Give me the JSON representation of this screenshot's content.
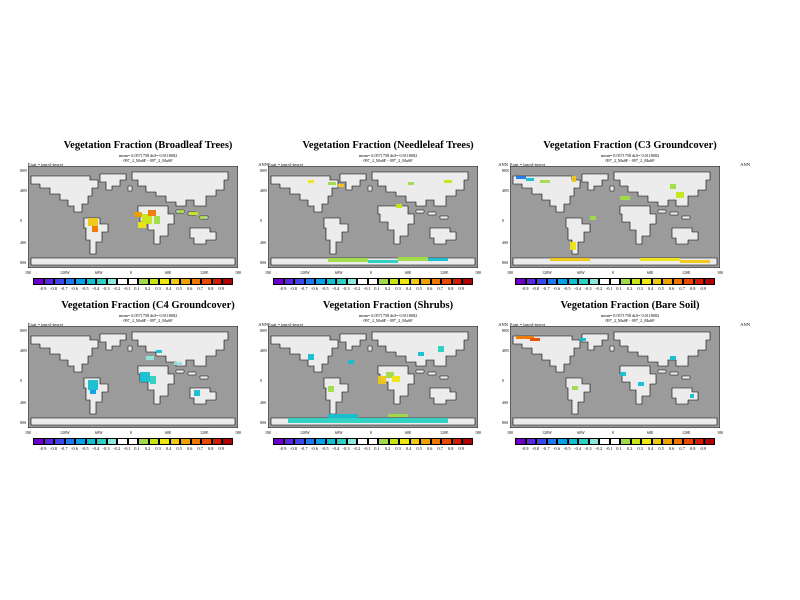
{
  "panels": [
    {
      "title": "Vegetation Fraction (Broadleaf Trees)",
      "subtitle1": "mean= 0.0571758 diff= 0.0118082",
      "subtitle2": "097_2_MaSF - 097_2_MaSF",
      "expt": "Expt = tmcvl-tmcvt",
      "period": "ANN"
    },
    {
      "title": "Vegetation Fraction (Needleleaf Trees)",
      "subtitle1": "mean= 0.0571758 diff= 0.0118082",
      "subtitle2": "097_2_MaSF - 097_2_MaSF",
      "expt": "Expt = tmcvl-tmcvt",
      "period": "ANN"
    },
    {
      "title": "Vegetation Fraction (C3 Groundcover)",
      "subtitle1": "mean= 0.0571758 diff= 0.0118082",
      "subtitle2": "097_2_MaSF - 097_2_MaSF",
      "expt": "Expt = tmcvl-tmcvt",
      "period": "ANN"
    },
    {
      "title": "Vegetation Fraction (C4 Groundcover)",
      "subtitle1": "mean= 0.0571758 diff= 0.0118082",
      "subtitle2": "097_2_MaSF - 097_2_MaSF",
      "expt": "Expt = tmcvl-tmcvt",
      "period": "ANN"
    },
    {
      "title": "Vegetation Fraction (Shrubs)",
      "subtitle1": "mean= 0.0571758 diff= 0.0118082",
      "subtitle2": "097_2_MaSF - 097_2_MaSF",
      "expt": "Expt = tmcvl-tmcvt",
      "period": "ANN"
    },
    {
      "title": "Vegetation Fraction (Bare Soil)",
      "subtitle1": "mean= 0.0571758 diff= 0.0118082",
      "subtitle2": "097_2_MaSF - 097_2_MaSF",
      "expt": "Expt = tmcvl-tmcvt",
      "period": "ANN"
    }
  ],
  "lat_labels": [
    "80N",
    "40N",
    "0",
    "40S",
    "80S"
  ],
  "lon_labels": [
    "180",
    "120W",
    "60W",
    "0",
    "60E",
    "120E",
    "180"
  ],
  "colorbar": {
    "ticks": [
      "-0.9",
      "-0.8",
      "-0.7",
      "-0.6",
      "-0.5",
      "-0.4",
      "-0.3",
      "-0.2",
      "-0.1",
      "0.1",
      "0.2",
      "0.3",
      "0.4",
      "0.5",
      "0.6",
      "0.7",
      "0.8",
      "0.9"
    ],
    "colors": [
      "#6a00c8",
      "#5a28dc",
      "#3c46f0",
      "#1e78f0",
      "#0a9ee6",
      "#14bed2",
      "#28d2c3",
      "#8ce6dc",
      "#ffffff",
      "#ffffff",
      "#a0dc46",
      "#c8e614",
      "#f0e614",
      "#f0c814",
      "#f0a000",
      "#f07800",
      "#e64b00",
      "#d21e00",
      "#b40000"
    ]
  },
  "map_colors": {
    "ocean": "#9b9b9b",
    "land": "#ececec"
  }
}
